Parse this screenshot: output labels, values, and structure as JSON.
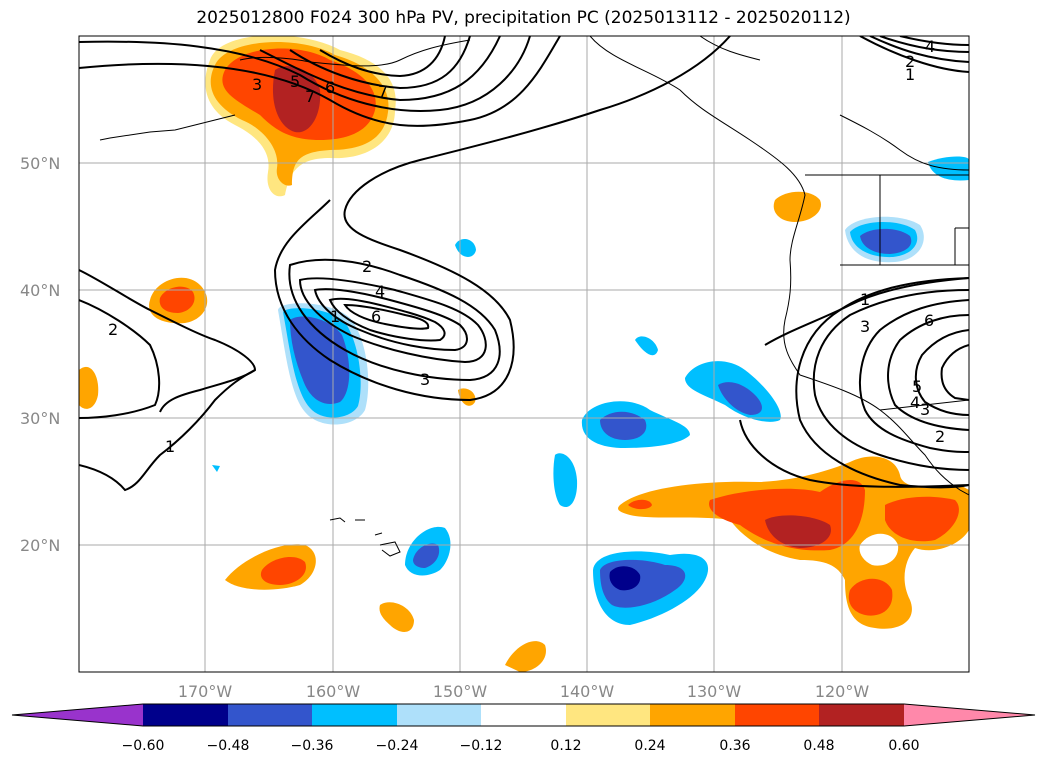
{
  "title": "2025012800 F024 300 hPa PV, precipitation PC (2025013112 - 2025020112)",
  "map": {
    "lat_ticks": [
      "50°N",
      "40°N",
      "30°N",
      "20°N"
    ],
    "lon_ticks": [
      "170°W",
      "160°W",
      "150°W",
      "140°W",
      "130°W",
      "120°W"
    ],
    "contour_labels": [
      "3",
      "5",
      "6",
      "7",
      "7",
      "2",
      "4",
      "6",
      "3",
      "1",
      "2",
      "1",
      "6",
      "3",
      "1",
      "2",
      "3",
      "4",
      "5",
      "4",
      "1",
      "2"
    ]
  },
  "colorbar": {
    "colors": [
      "#9933cc",
      "#00008b",
      "#3355cc",
      "#00bfff",
      "#aee0fa",
      "#ffffff",
      "#ffe680",
      "#ffa500",
      "#ff4500",
      "#b22222",
      "#ff88aa"
    ],
    "labels": [
      "−0.60",
      "−0.48",
      "−0.36",
      "−0.24",
      "−0.12",
      "0.12",
      "0.24",
      "0.36",
      "0.48",
      "0.60"
    ]
  }
}
